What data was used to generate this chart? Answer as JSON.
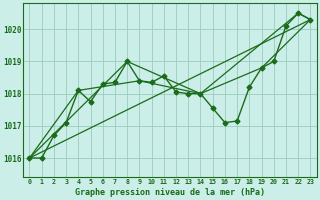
{
  "background_color": "#cceee8",
  "grid_color": "#99ccbb",
  "line_color": "#1a6b1a",
  "title": "Graphe pression niveau de la mer (hPa)",
  "ylabel_ticks": [
    1016,
    1017,
    1018,
    1019,
    1020
  ],
  "xlim": [
    -0.5,
    23.5
  ],
  "ylim": [
    1015.4,
    1020.8
  ],
  "series": [
    {
      "x": [
        0,
        1,
        2,
        3,
        4,
        5,
        6,
        7,
        8,
        9,
        10,
        11,
        12,
        13,
        14,
        15,
        16,
        17,
        18,
        19,
        20,
        21,
        22,
        23
      ],
      "y": [
        1016.0,
        1016.0,
        1016.7,
        1017.1,
        1018.1,
        1017.75,
        1018.3,
        1018.35,
        1019.0,
        1018.4,
        1018.35,
        1018.55,
        1018.05,
        1018.0,
        1018.0,
        1017.55,
        1017.1,
        1017.15,
        1018.2,
        1018.8,
        1019.0,
        1020.1,
        1020.5,
        1020.3
      ],
      "marker": "D",
      "markersize": 2.5,
      "linewidth": 1.0
    },
    {
      "x": [
        0,
        23
      ],
      "y": [
        1016.0,
        1020.3
      ],
      "marker": null,
      "linewidth": 0.9
    },
    {
      "x": [
        0,
        4,
        9,
        14,
        19,
        23
      ],
      "y": [
        1016.0,
        1018.1,
        1018.4,
        1018.0,
        1018.8,
        1020.3
      ],
      "marker": null,
      "linewidth": 0.9
    },
    {
      "x": [
        0,
        8,
        14,
        22,
        23
      ],
      "y": [
        1016.0,
        1019.0,
        1018.0,
        1020.5,
        1020.3
      ],
      "marker": null,
      "linewidth": 0.9
    }
  ]
}
